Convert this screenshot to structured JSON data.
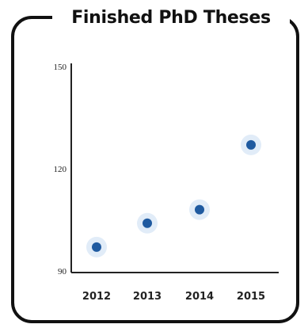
{
  "chart_data": {
    "type": "scatter",
    "title": "Finished PhD Theses",
    "xlabel": "",
    "ylabel": "",
    "categories": [
      "2012",
      "2013",
      "2014",
      "2015"
    ],
    "values": [
      97,
      104,
      108,
      127
    ],
    "ylim": [
      90,
      150
    ],
    "yticks": [
      "150",
      "120",
      "90"
    ],
    "grid": false,
    "legend": "none",
    "colors": {
      "marker": "#1f5aa0",
      "glow": "#a8c8ea",
      "frame": "#111111",
      "axis": "#222222"
    }
  }
}
